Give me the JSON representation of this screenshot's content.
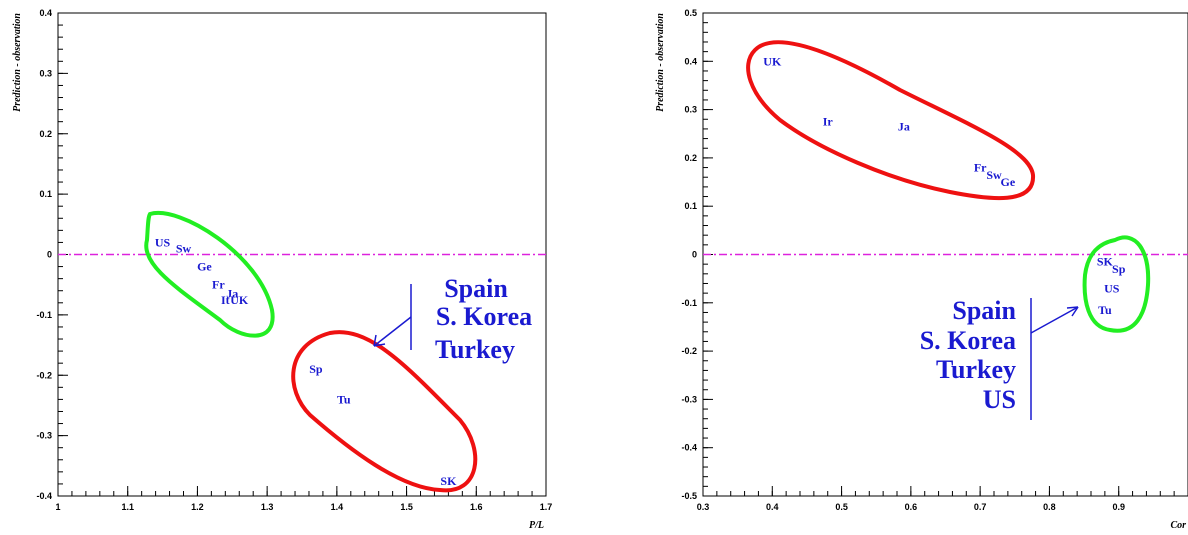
{
  "chart_data": [
    {
      "type": "scatter",
      "title": "",
      "xlabel": "P/L",
      "ylabel": "Prediction - observation",
      "xlim": [
        1,
        1.7
      ],
      "ylim": [
        -0.4,
        0.4
      ],
      "xticks": [
        "1",
        "1.1",
        "1.2",
        "1.3",
        "1.4",
        "1.5",
        "1.6",
        "1.7"
      ],
      "yticks": [
        "0.4",
        "0.3",
        "0.2",
        "0.1",
        "0",
        "-0.1",
        "-0.2",
        "-0.3",
        "-0.4"
      ],
      "reference_line_y": 0,
      "points": [
        {
          "label": "US",
          "x": 1.15,
          "y": 0.02
        },
        {
          "label": "Sw",
          "x": 1.18,
          "y": 0.01
        },
        {
          "label": "Ge",
          "x": 1.21,
          "y": -0.02
        },
        {
          "label": "Fr",
          "x": 1.23,
          "y": -0.05
        },
        {
          "label": "Ja",
          "x": 1.25,
          "y": -0.065
        },
        {
          "label": "It",
          "x": 1.24,
          "y": -0.075
        },
        {
          "label": "UK",
          "x": 1.26,
          "y": -0.075
        },
        {
          "label": "Sp",
          "x": 1.37,
          "y": -0.19
        },
        {
          "label": "Tu",
          "x": 1.41,
          "y": -0.24
        },
        {
          "label": "SK",
          "x": 1.56,
          "y": -0.375
        }
      ],
      "annotation": [
        "Spain",
        "S. Korea",
        "Turkey"
      ],
      "colors": {
        "good": "#22ee22",
        "bad": "#ee1111",
        "text": "#1a1ad0",
        "line": "#dd22dd"
      }
    },
    {
      "type": "scatter",
      "title": "",
      "xlabel": "Cor",
      "ylabel": "Prediction - observation",
      "xlim": [
        0.3,
        1.0
      ],
      "ylim": [
        -0.5,
        0.5
      ],
      "xticks": [
        "0.3",
        "0.4",
        "0.5",
        "0.6",
        "0.7",
        "0.8",
        "0.9"
      ],
      "yticks": [
        "0.5",
        "0.4",
        "0.3",
        "0.2",
        "0.1",
        "0",
        "-0.1",
        "-0.2",
        "-0.3",
        "-0.4",
        "-0.5"
      ],
      "reference_line_y": 0,
      "points": [
        {
          "label": "UK",
          "x": 0.4,
          "y": 0.4
        },
        {
          "label": "Ir",
          "x": 0.48,
          "y": 0.275
        },
        {
          "label": "Ja",
          "x": 0.59,
          "y": 0.265
        },
        {
          "label": "Fr",
          "x": 0.7,
          "y": 0.18
        },
        {
          "label": "Sw",
          "x": 0.72,
          "y": 0.165
        },
        {
          "label": "Ge",
          "x": 0.74,
          "y": 0.15
        },
        {
          "label": "SK",
          "x": 0.88,
          "y": -0.015
        },
        {
          "label": "Sp",
          "x": 0.9,
          "y": -0.03
        },
        {
          "label": "US",
          "x": 0.89,
          "y": -0.07
        },
        {
          "label": "Tu",
          "x": 0.88,
          "y": -0.115
        }
      ],
      "annotation": [
        "Spain",
        "S. Korea",
        "Turkey",
        "US"
      ],
      "colors": {
        "good": "#22ee22",
        "bad": "#ee1111",
        "text": "#1a1ad0",
        "line": "#dd22dd"
      }
    }
  ]
}
